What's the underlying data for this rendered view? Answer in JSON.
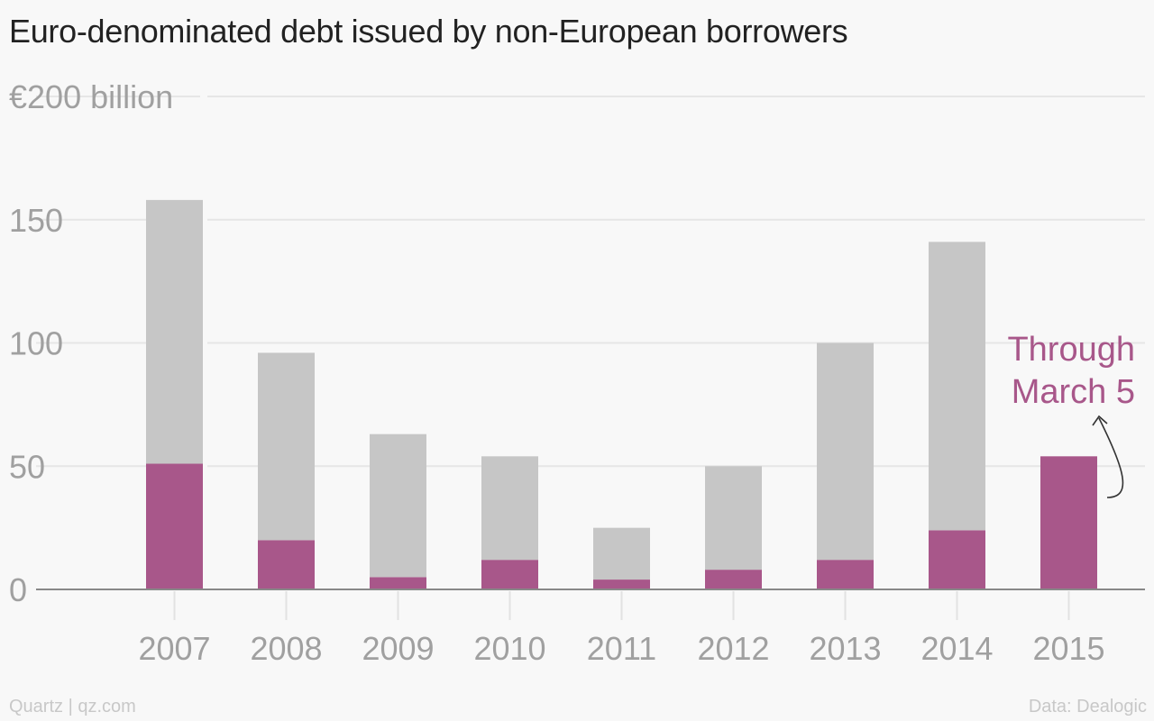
{
  "chart_data": {
    "type": "bar",
    "stacked": true,
    "title": "Euro-denominated debt issued by non-European borrowers",
    "y_axis_unit_label": "€200 billion",
    "y_ticks": [
      "0",
      "50",
      "100",
      "150",
      "€200 billion"
    ],
    "y_tick_values": [
      0,
      50,
      100,
      150,
      200
    ],
    "ylim": [
      0,
      200
    ],
    "categories": [
      "2007",
      "2008",
      "2009",
      "2010",
      "2011",
      "2012",
      "2013",
      "2014",
      "2015"
    ],
    "series": [
      {
        "values": [
          51,
          20,
          5,
          12,
          4,
          8,
          12,
          24,
          54
        ],
        "color": "#a8578a"
      },
      {
        "values": [
          107,
          76,
          58,
          42,
          21,
          42,
          88,
          117,
          0
        ],
        "color": "#c6c6c6"
      }
    ],
    "totals": [
      158,
      96,
      63,
      54,
      25,
      50,
      100,
      141,
      54
    ],
    "grid": true,
    "annotation": {
      "lines": [
        "Through",
        "March 5"
      ],
      "target_category": "2015",
      "color": "#a8578a"
    }
  },
  "footer": {
    "source_left": "Quartz | qz.com",
    "source_right": "Data: Dealogic"
  }
}
